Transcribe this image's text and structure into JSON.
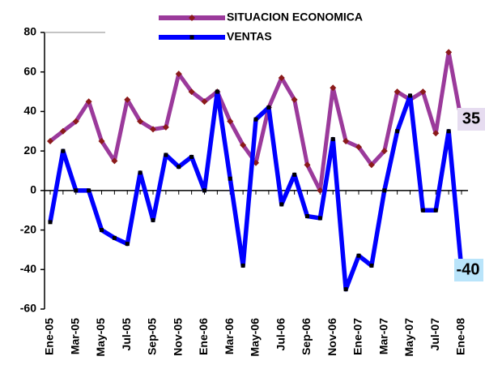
{
  "chart_data": {
    "type": "line",
    "categories": [
      "Ene-05",
      null,
      "Mar-05",
      null,
      "May-05",
      null,
      "Jul-05",
      null,
      "Sep-05",
      null,
      "Nov-05",
      null,
      "Ene-06",
      null,
      "Mar-06",
      null,
      "May-06",
      null,
      "Jul-06",
      null,
      "Sep-06",
      null,
      "Nov-06",
      null,
      "Ene-07",
      null,
      "Mar-07",
      null,
      "May-07",
      null,
      "Jul-07",
      null,
      "Ene-08"
    ],
    "series": [
      {
        "name": "SITUACION ECONOMICA",
        "color": "#9b3a9b",
        "marker_color": "#8b1a1a",
        "values": [
          25,
          30,
          35,
          45,
          25,
          15,
          46,
          35,
          31,
          32,
          59,
          50,
          45,
          50,
          35,
          23,
          14,
          42,
          57,
          46,
          13,
          0,
          52,
          25,
          22,
          13,
          20,
          50,
          46,
          50,
          29,
          70,
          35
        ]
      },
      {
        "name": "VENTAS",
        "color": "#0000ff",
        "marker_color": "#000000",
        "values": [
          -16,
          20,
          0,
          0,
          -20,
          -24,
          -27,
          9,
          -15,
          18,
          12,
          17,
          0,
          50,
          6,
          -38,
          36,
          42,
          -7,
          8,
          -13,
          -14,
          26,
          -50,
          -33,
          -38,
          0,
          30,
          48,
          -10,
          -10,
          30,
          -40
        ]
      }
    ],
    "ylim": [
      -60,
      80
    ],
    "yticks": [
      -60,
      -40,
      -20,
      0,
      20,
      40,
      60,
      80
    ],
    "grid": false
  }
}
